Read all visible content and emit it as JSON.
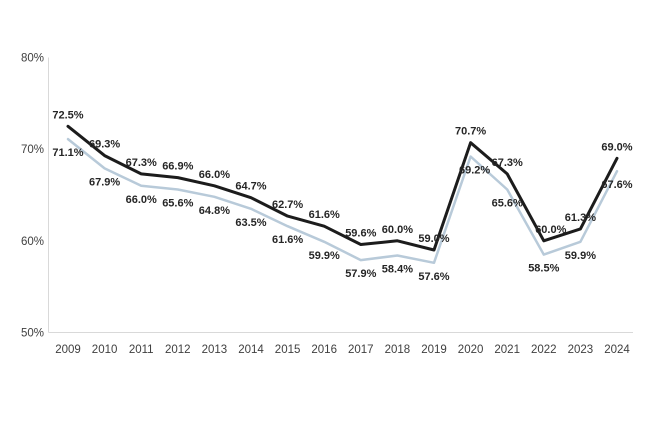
{
  "figure": {
    "background": "#ffffff"
  },
  "chart_data": {
    "type": "line",
    "title": "",
    "xlabel": "",
    "ylabel": "",
    "categories": [
      "2009",
      "2010",
      "2011",
      "2012",
      "2013",
      "2014",
      "2015",
      "2016",
      "2017",
      "2018",
      "2019",
      "2020",
      "2021",
      "2022",
      "2023",
      "2024"
    ],
    "series": [
      {
        "name": "dark-line",
        "color": "#1c1c1c",
        "values": [
          72.5,
          69.3,
          67.3,
          66.9,
          66.0,
          64.7,
          62.7,
          61.6,
          59.6,
          60.0,
          59.0,
          70.7,
          67.3,
          60.0,
          61.3,
          69.0
        ],
        "labels": [
          "72.5%",
          "69.3%",
          "67.3%",
          "66.9%",
          "66.0%",
          "64.7%",
          "62.7%",
          "61.6%",
          "59.6%",
          "60.0%",
          "59.0%",
          "70.7%",
          "67.3%",
          "60.0%",
          "61.3%",
          "69.0%"
        ]
      },
      {
        "name": "light-line",
        "color": "#b8cad9",
        "values": [
          71.1,
          67.9,
          66.0,
          65.6,
          64.8,
          63.5,
          61.6,
          59.9,
          57.9,
          58.4,
          57.6,
          69.2,
          65.6,
          58.5,
          59.9,
          67.6
        ],
        "labels": [
          "71.1%",
          "67.9%",
          "66.0%",
          "65.6%",
          "64.8%",
          "63.5%",
          "61.6%",
          "59.9%",
          "57.9%",
          "58.4%",
          "57.6%",
          "69.2%",
          "65.6%",
          "58.5%",
          "59.9%",
          "67.6%"
        ]
      }
    ],
    "ylim": [
      50,
      80
    ],
    "yticks": [
      80,
      70,
      60,
      50
    ],
    "ytick_labels": [
      "80%",
      "70%",
      "60%",
      "50%"
    ],
    "grid": false,
    "legend": "none",
    "axis_line_color": "#d9d9d9",
    "tick_label_color": "#404040",
    "data_label_color": "#262626"
  }
}
